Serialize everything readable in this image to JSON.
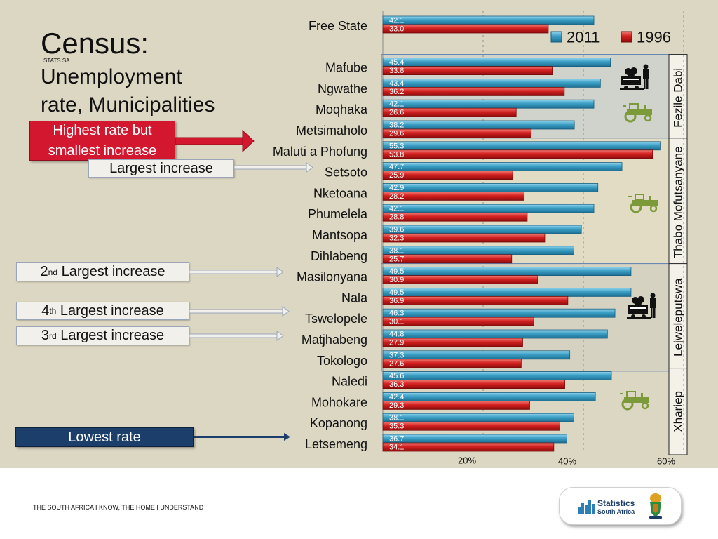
{
  "title": {
    "main": "Census:",
    "sub_line1": "Unemployment",
    "sub_line2": "rate, Municipalities",
    "small_label": "STATS SA"
  },
  "callouts": {
    "highest": {
      "line1": "Highest rate but",
      "line2": "smallest increase"
    },
    "largest": "Largest increase",
    "second": {
      "num": "2",
      "sup": "nd",
      "rest": " Largest increase"
    },
    "fourth": {
      "num": "4",
      "sup": "th",
      "rest": " Largest increase"
    },
    "third": {
      "num": "3",
      "sup": "rd",
      "rest": " Largest increase"
    },
    "lowest": "Lowest rate"
  },
  "footer": {
    "tagline": "THE SOUTH AFRICA I KNOW, THE HOME I UNDERSTAND",
    "logo_line1": "Statistics",
    "logo_line2": "South Africa"
  },
  "colors": {
    "series_2011": "#3b9ec4",
    "series_1996": "#d42020",
    "group_fezile_bg": "#cfd3cc",
    "group_thabo_bg": "#e2dcc4",
    "group_lejwe_bg": "#d6d2c2",
    "group_border": "#5b7fb5",
    "icon_dark": "#111111",
    "icon_green": "#7d9a3a"
  },
  "icons": [
    "mining-cart-icon",
    "tractor-icon"
  ],
  "chart_data": {
    "type": "bar",
    "orientation": "horizontal",
    "xlim": [
      0,
      65
    ],
    "x_ticks": [
      {
        "value": 20,
        "label": "20%"
      },
      {
        "value": 40,
        "label": "40%"
      },
      {
        "value": 60,
        "label": "60%"
      }
    ],
    "legend": [
      "2011",
      "1996"
    ],
    "legend_position": "top-right",
    "categories": [
      "Free State",
      "Mafube",
      "Ngwathe",
      "Moqhaka",
      "Metsimaholo",
      "Maluti a Phofung",
      "Setsoto",
      "Nketoana",
      "Phumelela",
      "Mantsopa",
      "Dihlabeng",
      "Masilonyana",
      "Nala",
      "Tswelopele",
      "Matjhabeng",
      "Tokologo",
      "Naledi",
      "Mohokare",
      "Kopanong",
      "Letsemeng"
    ],
    "series": [
      {
        "name": "2011",
        "values": [
          42.1,
          45.4,
          43.4,
          42.1,
          38.2,
          55.3,
          47.7,
          42.9,
          42.1,
          39.6,
          38.1,
          49.5,
          49.5,
          46.3,
          44.8,
          37.3,
          45.6,
          42.4,
          38.1,
          36.7
        ],
        "labels": [
          "42.1",
          "45.4",
          "43.4",
          "42.1",
          "38.2",
          "55.3",
          "47.7",
          "42.9",
          "42.1",
          "39.6",
          "38.1",
          "49.5",
          "49.5",
          "46.3",
          "44.8",
          "37.3",
          "45.6",
          "42.4",
          "38.1",
          "36.7"
        ]
      },
      {
        "name": "1996",
        "values": [
          33.0,
          33.8,
          36.2,
          26.6,
          29.6,
          53.8,
          25.9,
          28.2,
          28.8,
          32.3,
          25.7,
          30.9,
          36.9,
          30.1,
          27.9,
          27.6,
          36.3,
          29.3,
          35.3,
          34.1
        ],
        "labels": [
          "33.0",
          "33.8",
          "36.2",
          "26.6",
          "29.6",
          "53.8",
          "25.9",
          "28.2",
          "28.8",
          "32.3",
          "25.7",
          "30.9",
          "36.9",
          "30.1",
          "27.9",
          "27.6",
          "36.3",
          "29.3",
          "35.3",
          "34.1"
        ]
      }
    ],
    "groups": [
      {
        "name": "Fezile Dabi",
        "members": [
          "Mafube",
          "Ngwathe",
          "Moqhaka",
          "Metsimaholo"
        ],
        "icons": [
          "mining-cart-icon",
          "tractor-icon"
        ]
      },
      {
        "name": "Thabo Mofutsanyane",
        "members": [
          "Maluti a Phofung",
          "Setsoto",
          "Nketoana",
          "Phumelela",
          "Mantsopa",
          "Dihlabeng"
        ],
        "icons": [
          "tractor-icon"
        ]
      },
      {
        "name": "Lejweleputswa",
        "members": [
          "Masilonyana",
          "Nala",
          "Tswelopele",
          "Matjhabeng",
          "Tokologo"
        ],
        "icons": [
          "mining-cart-icon"
        ]
      },
      {
        "name": "Xhariep",
        "members": [
          "Naledi",
          "Mohokare",
          "Kopanong",
          "Letsemeng"
        ],
        "icons": [
          "tractor-icon"
        ]
      }
    ]
  }
}
